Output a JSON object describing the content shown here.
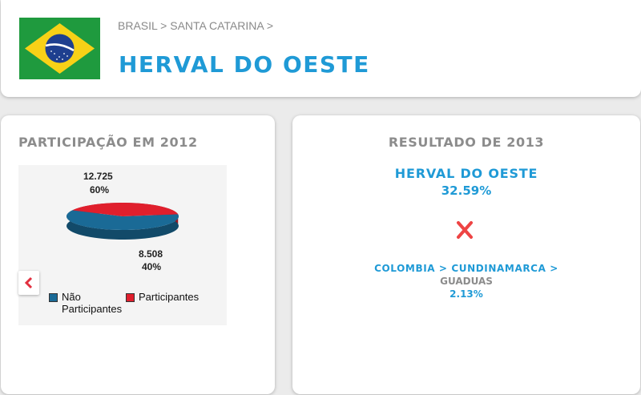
{
  "header": {
    "breadcrumb": "BRASIL > SANTA CATARINA >",
    "title": "HERVAL DO OESTE",
    "flag": "brazil-flag"
  },
  "participation": {
    "title": "PARTICIPAÇÃO EM 2012",
    "prev_icon": "chevron-left-icon",
    "chart_data": {
      "type": "pie",
      "categories": [
        "Não Participantes",
        "Participantes"
      ],
      "values": [
        12725,
        8508
      ],
      "percent": [
        60,
        40
      ],
      "value_labels": [
        "12.725",
        "8.508"
      ],
      "percent_labels": [
        "60%",
        "40%"
      ],
      "colors": [
        "#1a6a96",
        "#e01f2d"
      ],
      "legend": "bottom"
    },
    "legend": [
      {
        "label": "Não Participantes",
        "color": "#1a6a96"
      },
      {
        "label": "Participantes",
        "color": "#e01f2d"
      }
    ]
  },
  "result": {
    "title": "RESULTADO DE 2013",
    "city1": "HERVAL DO OESTE",
    "pct1": "32.59%",
    "vs_icon": "x-icon",
    "vs_color": "#ee4444",
    "city2": "COLOMBIA > CUNDINAMARCA >",
    "city2_sub": "GUADUAS",
    "pct2": "2.13%"
  }
}
